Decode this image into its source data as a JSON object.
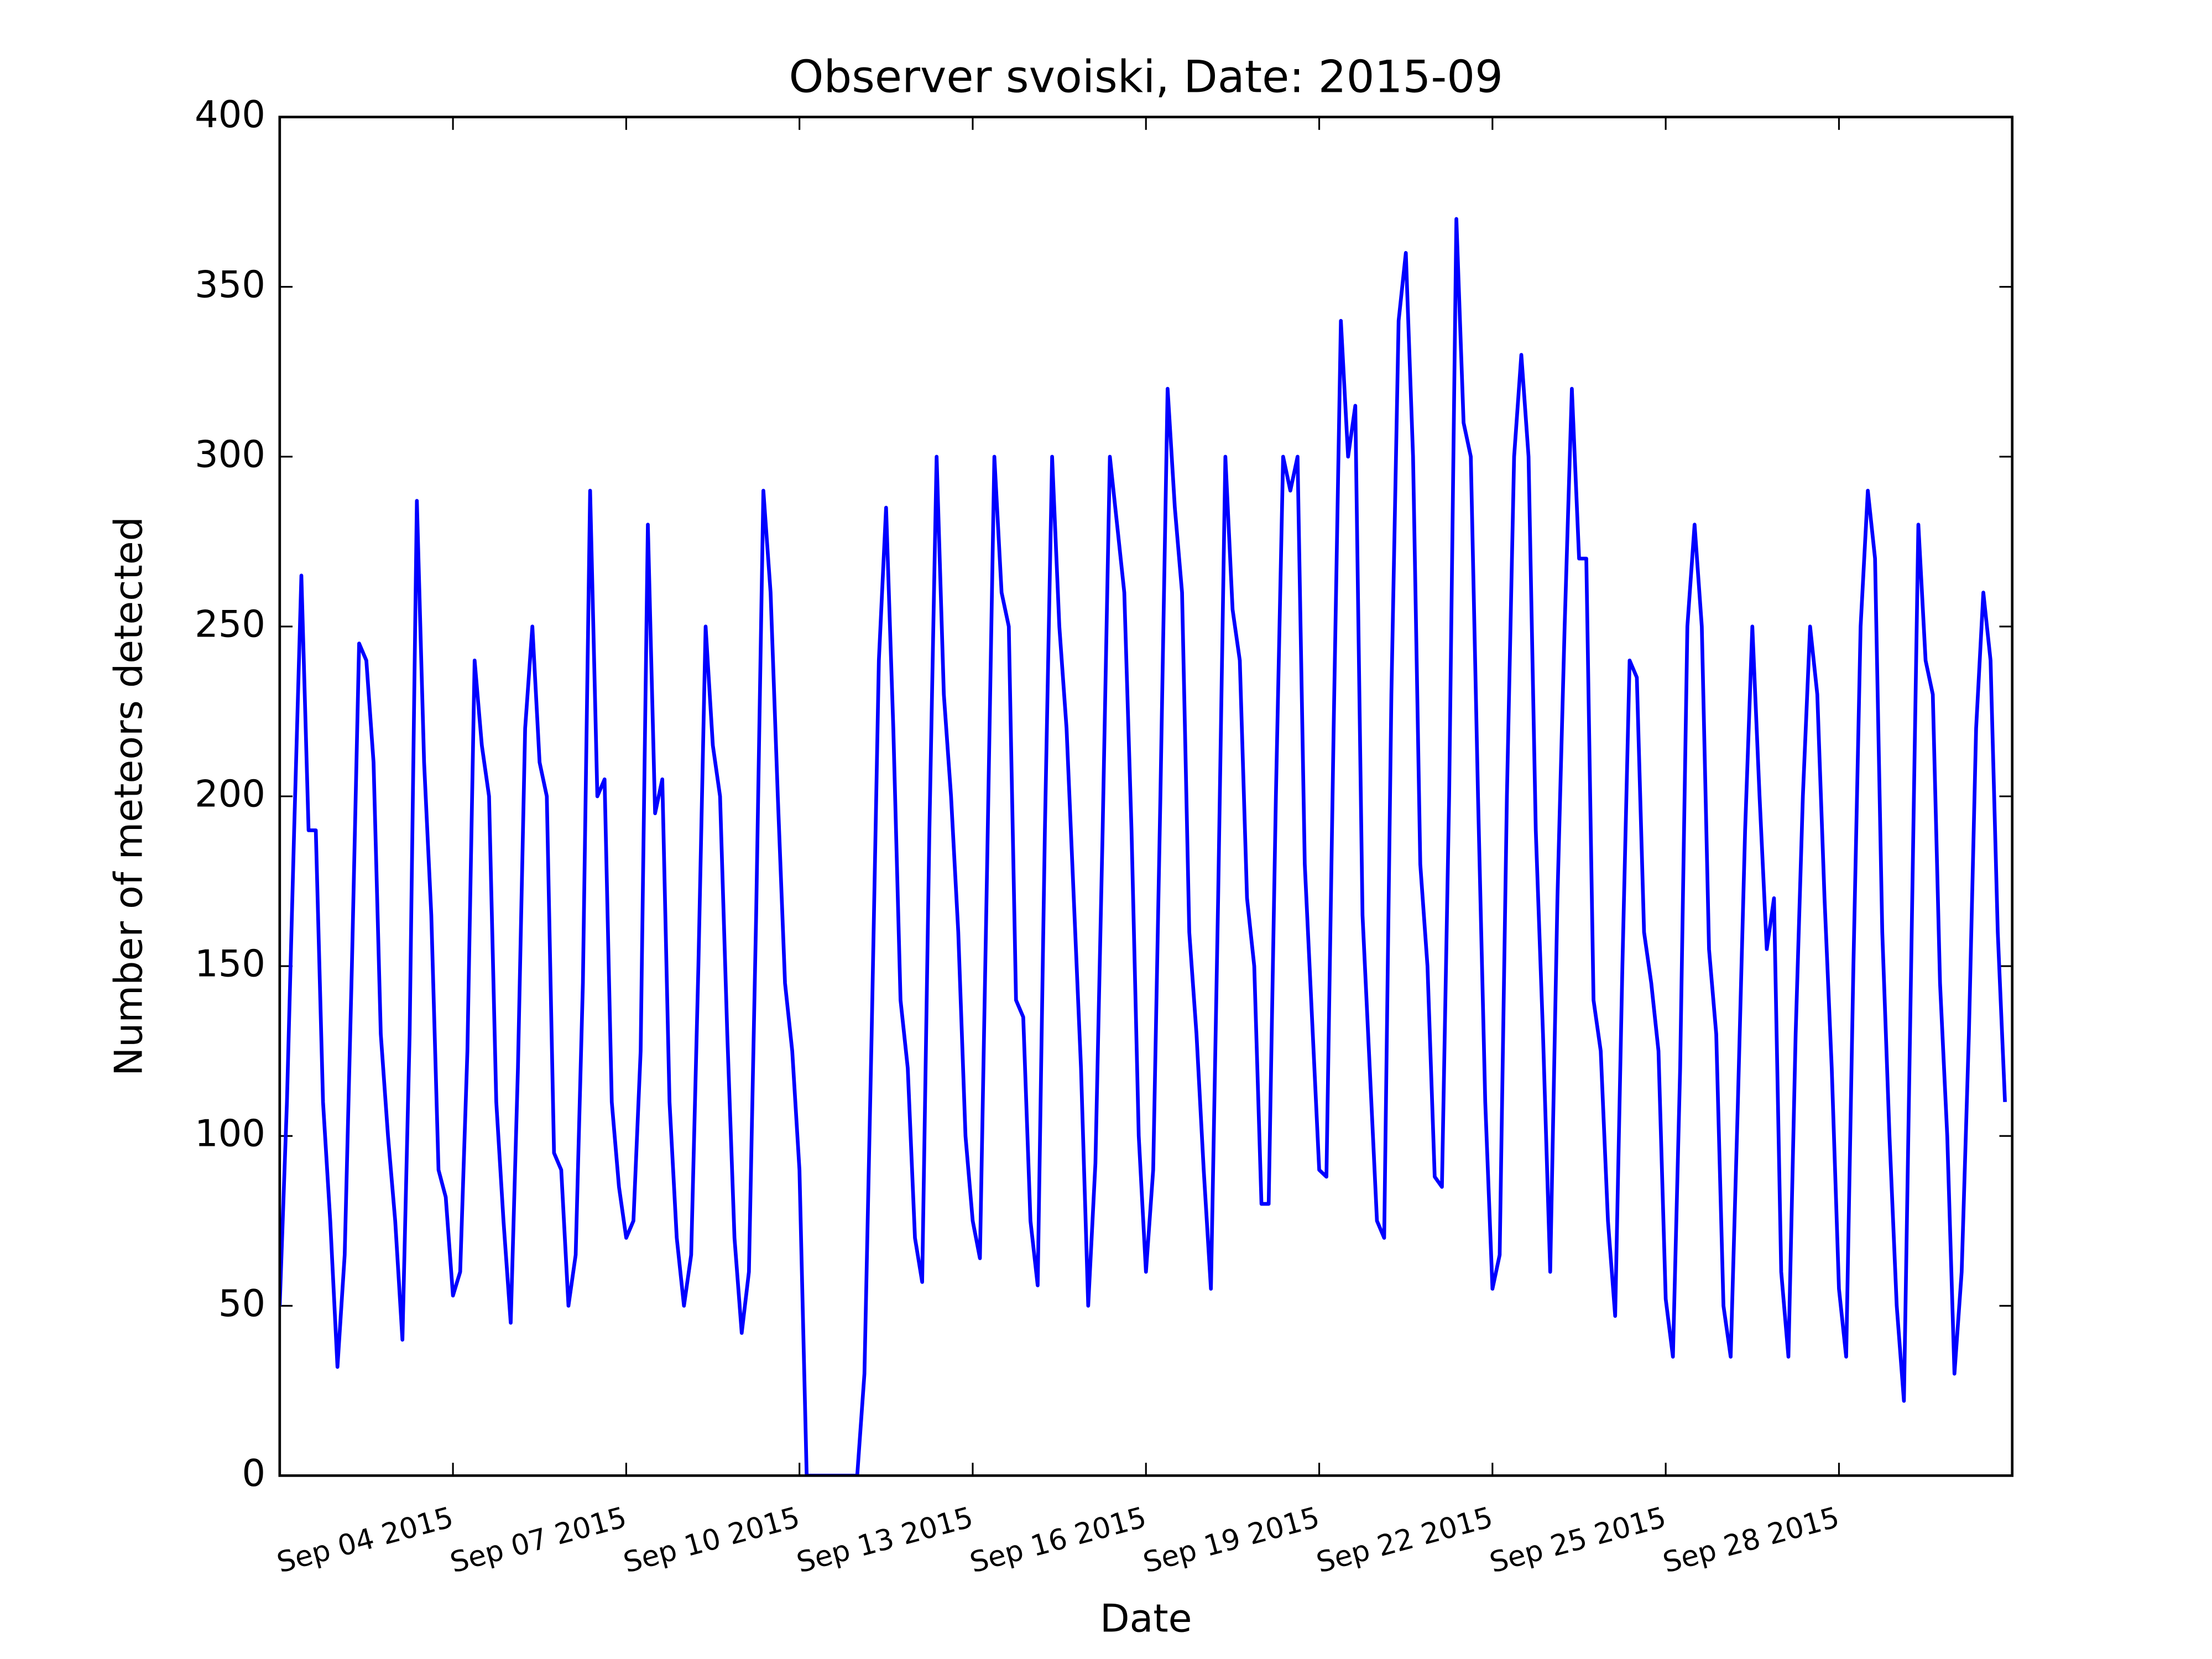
{
  "chart_data": {
    "type": "line",
    "title": "Observer svoiski, Date: 2015-09",
    "x_label": "Date",
    "y_label": "Number of meteors detected",
    "color": "#0000ff",
    "grid": false,
    "xlim": [
      "2015-09-01",
      "2015-10-01"
    ],
    "xticks": [
      {
        "value": "2015-09-04",
        "label": "Sep 04 2015"
      },
      {
        "value": "2015-09-07",
        "label": "Sep 07 2015"
      },
      {
        "value": "2015-09-10",
        "label": "Sep 10 2015"
      },
      {
        "value": "2015-09-13",
        "label": "Sep 13 2015"
      },
      {
        "value": "2015-09-16",
        "label": "Sep 16 2015"
      },
      {
        "value": "2015-09-19",
        "label": "Sep 19 2015"
      },
      {
        "value": "2015-09-22",
        "label": "Sep 22 2015"
      },
      {
        "value": "2015-09-25",
        "label": "Sep 25 2015"
      },
      {
        "value": "2015-09-28",
        "label": "Sep 28 2015"
      }
    ],
    "ylim": [
      0,
      400
    ],
    "yticks": [
      0,
      50,
      100,
      150,
      200,
      250,
      300,
      350,
      400
    ],
    "x": [
      "2015-09-01 00:00",
      "2015-09-01 03:00",
      "2015-09-01 06:00",
      "2015-09-01 09:00",
      "2015-09-01 12:00",
      "2015-09-01 15:00",
      "2015-09-01 18:00",
      "2015-09-01 21:00",
      "2015-09-02 00:00",
      "2015-09-02 03:00",
      "2015-09-02 06:00",
      "2015-09-02 09:00",
      "2015-09-02 12:00",
      "2015-09-02 15:00",
      "2015-09-02 18:00",
      "2015-09-02 21:00",
      "2015-09-03 00:00",
      "2015-09-03 03:00",
      "2015-09-03 06:00",
      "2015-09-03 09:00",
      "2015-09-03 12:00",
      "2015-09-03 15:00",
      "2015-09-03 18:00",
      "2015-09-03 21:00",
      "2015-09-04 00:00",
      "2015-09-04 03:00",
      "2015-09-04 06:00",
      "2015-09-04 09:00",
      "2015-09-04 12:00",
      "2015-09-04 15:00",
      "2015-09-04 18:00",
      "2015-09-04 21:00",
      "2015-09-05 00:00",
      "2015-09-05 03:00",
      "2015-09-05 06:00",
      "2015-09-05 09:00",
      "2015-09-05 12:00",
      "2015-09-05 15:00",
      "2015-09-05 18:00",
      "2015-09-05 21:00",
      "2015-09-06 00:00",
      "2015-09-06 03:00",
      "2015-09-06 06:00",
      "2015-09-06 09:00",
      "2015-09-06 12:00",
      "2015-09-06 15:00",
      "2015-09-06 18:00",
      "2015-09-06 21:00",
      "2015-09-07 00:00",
      "2015-09-07 03:00",
      "2015-09-07 06:00",
      "2015-09-07 09:00",
      "2015-09-07 12:00",
      "2015-09-07 15:00",
      "2015-09-07 18:00",
      "2015-09-07 21:00",
      "2015-09-08 00:00",
      "2015-09-08 03:00",
      "2015-09-08 06:00",
      "2015-09-08 09:00",
      "2015-09-08 12:00",
      "2015-09-08 15:00",
      "2015-09-08 18:00",
      "2015-09-08 21:00",
      "2015-09-09 00:00",
      "2015-09-09 03:00",
      "2015-09-09 06:00",
      "2015-09-09 09:00",
      "2015-09-09 12:00",
      "2015-09-09 15:00",
      "2015-09-09 18:00",
      "2015-09-09 21:00",
      "2015-09-10 00:00",
      "2015-09-10 03:00",
      "2015-09-10 06:00",
      "2015-09-10 09:00",
      "2015-09-10 12:00",
      "2015-09-10 15:00",
      "2015-09-10 18:00",
      "2015-09-10 21:00",
      "2015-09-11 00:00",
      "2015-09-11 03:00",
      "2015-09-11 06:00",
      "2015-09-11 09:00",
      "2015-09-11 12:00",
      "2015-09-11 15:00",
      "2015-09-11 18:00",
      "2015-09-11 21:00",
      "2015-09-12 00:00",
      "2015-09-12 03:00",
      "2015-09-12 06:00",
      "2015-09-12 09:00",
      "2015-09-12 12:00",
      "2015-09-12 15:00",
      "2015-09-12 18:00",
      "2015-09-12 21:00",
      "2015-09-13 00:00",
      "2015-09-13 03:00",
      "2015-09-13 06:00",
      "2015-09-13 09:00",
      "2015-09-13 12:00",
      "2015-09-13 15:00",
      "2015-09-13 18:00",
      "2015-09-13 21:00",
      "2015-09-14 00:00",
      "2015-09-14 03:00",
      "2015-09-14 06:00",
      "2015-09-14 09:00",
      "2015-09-14 12:00",
      "2015-09-14 15:00",
      "2015-09-14 18:00",
      "2015-09-14 21:00",
      "2015-09-15 00:00",
      "2015-09-15 03:00",
      "2015-09-15 06:00",
      "2015-09-15 09:00",
      "2015-09-15 12:00",
      "2015-09-15 15:00",
      "2015-09-15 18:00",
      "2015-09-15 21:00",
      "2015-09-16 00:00",
      "2015-09-16 03:00",
      "2015-09-16 06:00",
      "2015-09-16 09:00",
      "2015-09-16 12:00",
      "2015-09-16 15:00",
      "2015-09-16 18:00",
      "2015-09-16 21:00",
      "2015-09-17 00:00",
      "2015-09-17 03:00",
      "2015-09-17 06:00",
      "2015-09-17 09:00",
      "2015-09-17 12:00",
      "2015-09-17 15:00",
      "2015-09-17 18:00",
      "2015-09-17 21:00",
      "2015-09-18 00:00",
      "2015-09-18 03:00",
      "2015-09-18 06:00",
      "2015-09-18 09:00",
      "2015-09-18 12:00",
      "2015-09-18 15:00",
      "2015-09-18 18:00",
      "2015-09-18 21:00",
      "2015-09-19 00:00",
      "2015-09-19 03:00",
      "2015-09-19 06:00",
      "2015-09-19 09:00",
      "2015-09-19 12:00",
      "2015-09-19 15:00",
      "2015-09-19 18:00",
      "2015-09-19 21:00",
      "2015-09-20 00:00",
      "2015-09-20 03:00",
      "2015-09-20 06:00",
      "2015-09-20 09:00",
      "2015-09-20 12:00",
      "2015-09-20 15:00",
      "2015-09-20 18:00",
      "2015-09-20 21:00",
      "2015-09-21 00:00",
      "2015-09-21 03:00",
      "2015-09-21 06:00",
      "2015-09-21 09:00",
      "2015-09-21 12:00",
      "2015-09-21 15:00",
      "2015-09-21 18:00",
      "2015-09-21 21:00",
      "2015-09-22 00:00",
      "2015-09-22 03:00",
      "2015-09-22 06:00",
      "2015-09-22 09:00",
      "2015-09-22 12:00",
      "2015-09-22 15:00",
      "2015-09-22 18:00",
      "2015-09-22 21:00",
      "2015-09-23 00:00",
      "2015-09-23 03:00",
      "2015-09-23 06:00",
      "2015-09-23 09:00",
      "2015-09-23 12:00",
      "2015-09-23 15:00",
      "2015-09-23 18:00",
      "2015-09-23 21:00",
      "2015-09-24 00:00",
      "2015-09-24 03:00",
      "2015-09-24 06:00",
      "2015-09-24 09:00",
      "2015-09-24 12:00",
      "2015-09-24 15:00",
      "2015-09-24 18:00",
      "2015-09-24 21:00",
      "2015-09-25 00:00",
      "2015-09-25 03:00",
      "2015-09-25 06:00",
      "2015-09-25 09:00",
      "2015-09-25 12:00",
      "2015-09-25 15:00",
      "2015-09-25 18:00",
      "2015-09-25 21:00",
      "2015-09-26 00:00",
      "2015-09-26 03:00",
      "2015-09-26 06:00",
      "2015-09-26 09:00",
      "2015-09-26 12:00",
      "2015-09-26 15:00",
      "2015-09-26 18:00",
      "2015-09-26 21:00",
      "2015-09-27 00:00",
      "2015-09-27 03:00",
      "2015-09-27 06:00",
      "2015-09-27 09:00",
      "2015-09-27 12:00",
      "2015-09-27 15:00",
      "2015-09-27 18:00",
      "2015-09-27 21:00",
      "2015-09-28 00:00",
      "2015-09-28 03:00",
      "2015-09-28 06:00",
      "2015-09-28 09:00",
      "2015-09-28 12:00",
      "2015-09-28 15:00",
      "2015-09-28 18:00",
      "2015-09-28 21:00",
      "2015-09-29 00:00",
      "2015-09-29 03:00",
      "2015-09-29 06:00",
      "2015-09-29 09:00",
      "2015-09-29 12:00",
      "2015-09-29 15:00",
      "2015-09-29 18:00",
      "2015-09-29 21:00",
      "2015-09-30 00:00",
      "2015-09-30 03:00",
      "2015-09-30 06:00",
      "2015-09-30 09:00",
      "2015-09-30 12:00",
      "2015-09-30 15:00",
      "2015-09-30 18:00",
      "2015-09-30 21:00"
    ],
    "values": [
      50,
      110,
      190,
      265,
      190,
      190,
      110,
      75,
      32,
      65,
      150,
      245,
      240,
      210,
      130,
      100,
      75,
      40,
      130,
      287,
      210,
      165,
      90,
      82,
      53,
      60,
      125,
      240,
      215,
      200,
      110,
      75,
      45,
      120,
      220,
      250,
      210,
      200,
      95,
      90,
      50,
      65,
      145,
      290,
      200,
      205,
      110,
      85,
      70,
      75,
      125,
      280,
      195,
      205,
      110,
      70,
      50,
      65,
      150,
      250,
      215,
      200,
      130,
      70,
      42,
      60,
      165,
      290,
      260,
      200,
      145,
      125,
      90,
      0,
      0,
      0,
      0,
      0,
      0,
      0,
      0,
      30,
      130,
      240,
      285,
      220,
      140,
      120,
      70,
      57,
      190,
      300,
      230,
      200,
      160,
      100,
      75,
      64,
      180,
      300,
      260,
      250,
      140,
      135,
      75,
      56,
      190,
      300,
      250,
      220,
      170,
      120,
      50,
      92,
      190,
      300,
      280,
      260,
      190,
      100,
      60,
      90,
      200,
      320,
      285,
      260,
      160,
      130,
      90,
      55,
      170,
      300,
      255,
      240,
      170,
      150,
      80,
      80,
      200,
      300,
      290,
      300,
      180,
      135,
      90,
      88,
      220,
      340,
      300,
      315,
      165,
      120,
      75,
      70,
      230,
      340,
      360,
      300,
      180,
      150,
      88,
      85,
      200,
      370,
      310,
      300,
      200,
      110,
      55,
      65,
      200,
      300,
      330,
      300,
      190,
      130,
      60,
      170,
      250,
      320,
      270,
      270,
      140,
      125,
      75,
      47,
      150,
      240,
      235,
      160,
      145,
      125,
      52,
      35,
      120,
      250,
      280,
      250,
      155,
      130,
      50,
      35,
      110,
      190,
      250,
      200,
      155,
      170,
      60,
      35,
      130,
      200,
      250,
      230,
      170,
      120,
      55,
      35,
      150,
      250,
      290,
      270,
      160,
      100,
      50,
      22,
      150,
      280,
      240,
      230,
      145,
      100,
      30,
      60,
      130,
      220,
      260,
      240,
      160,
      110
    ]
  }
}
